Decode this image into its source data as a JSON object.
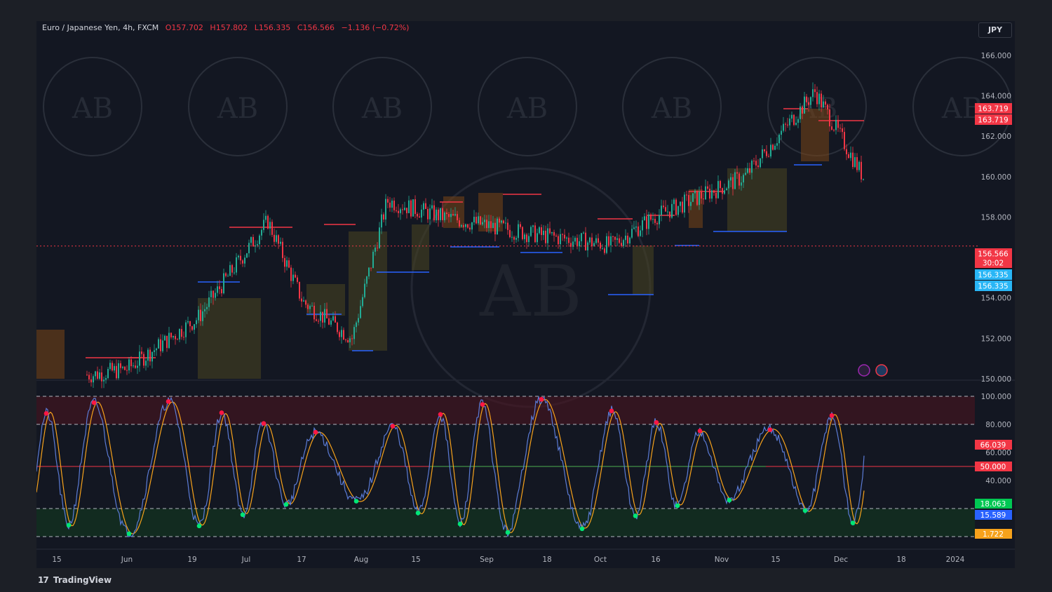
{
  "header": {
    "symbol": "Euro / Japanese Yen, 4h, FXCM",
    "open": "O157.702",
    "high": "H157.802",
    "low": "L156.335",
    "close": "C156.566",
    "change": "−1.136 (−0.72%)"
  },
  "currency_button": "JPY",
  "branding": "TradingView",
  "watermark_text": "AB",
  "colors": {
    "up": "#22ab94",
    "down": "#f23645",
    "accent_blue": "#2962ff",
    "resistance": "#f23645",
    "support": "#2962ff",
    "box_olive": "#4a4520",
    "box_orange": "#7a4516",
    "osc_fast": "#5b7bd5",
    "osc_slow": "#f7a21b",
    "dot_top": "#ff1744",
    "dot_bottom": "#00e676"
  },
  "x_axis": [
    "15",
    "Jun",
    "19",
    "Jul",
    "17",
    "Aug",
    "15",
    "Sep",
    "18",
    "Oct",
    "16",
    "Nov",
    "15",
    "Dec",
    "18",
    "2024"
  ],
  "chart_data": [
    {
      "type": "line",
      "name": "price",
      "ylim": [
        150,
        167
      ],
      "y_ticks": [
        "150.000",
        "152.000",
        "154.000",
        "156.000",
        "158.000",
        "160.000",
        "162.000",
        "164.000",
        "166.000"
      ],
      "x": [
        "15",
        "Jun",
        "19",
        "Jul",
        "17",
        "Aug",
        "15",
        "Sep",
        "18",
        "Oct",
        "16",
        "Nov",
        "15",
        "Dec"
      ],
      "values": [
        150.2,
        150.5,
        153.0,
        157.8,
        153.8,
        152.0,
        158.8,
        158.0,
        157.2,
        156.6,
        158.0,
        160.0,
        164.2,
        156.57
      ],
      "price_labels": [
        "163.719",
        "163.719",
        "156.566",
        "30:02",
        "156.335",
        "156.335"
      ]
    },
    {
      "type": "line",
      "name": "oscillator",
      "ylim": [
        0,
        100
      ],
      "y_ticks": [
        "100.000",
        "80.000",
        "60.000",
        "40.000"
      ],
      "levels": [
        100,
        80,
        50,
        20,
        0
      ],
      "value_labels": [
        "66.039",
        "50.000",
        "18.063",
        "15.589",
        "1.722"
      ]
    }
  ]
}
